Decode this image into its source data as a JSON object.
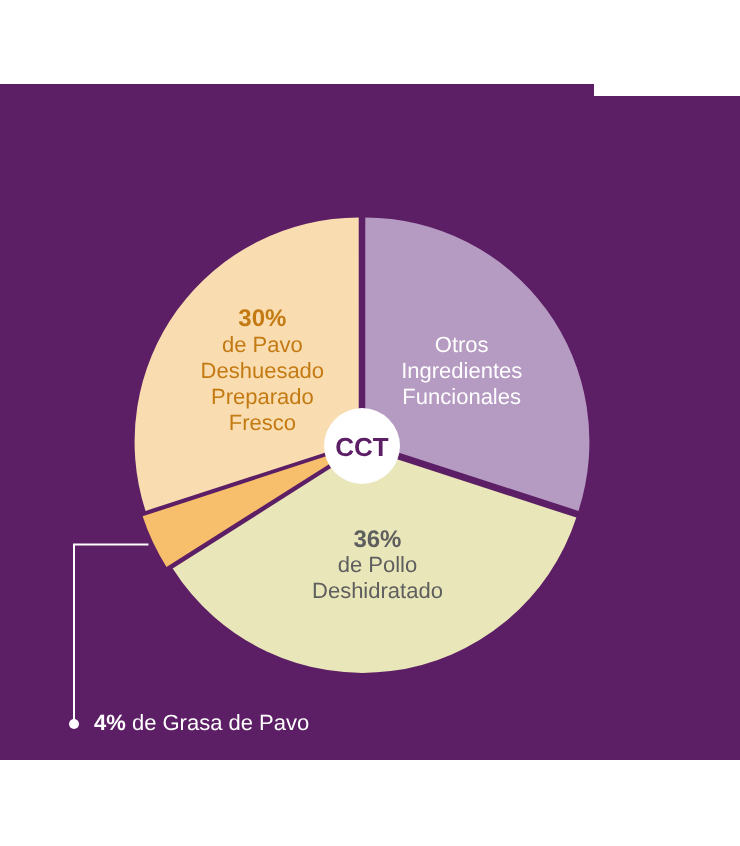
{
  "chart_data": {
    "type": "pie",
    "categories": [
      "Otros Ingredientes Funcionales",
      "de Pollo Deshidratado",
      "de Grasa de Pavo",
      "de Pavo Deshuesado Preparado Fresco"
    ],
    "values": [
      30,
      36,
      4,
      30
    ],
    "colors": [
      "#b59ac2",
      "#e9e6b9",
      "#f7bf6b",
      "#f9dcb0"
    ],
    "value_labels": [
      null,
      "36%",
      "4%",
      "30%"
    ],
    "annotations": [
      "CCT"
    ],
    "legend": false
  }
}
